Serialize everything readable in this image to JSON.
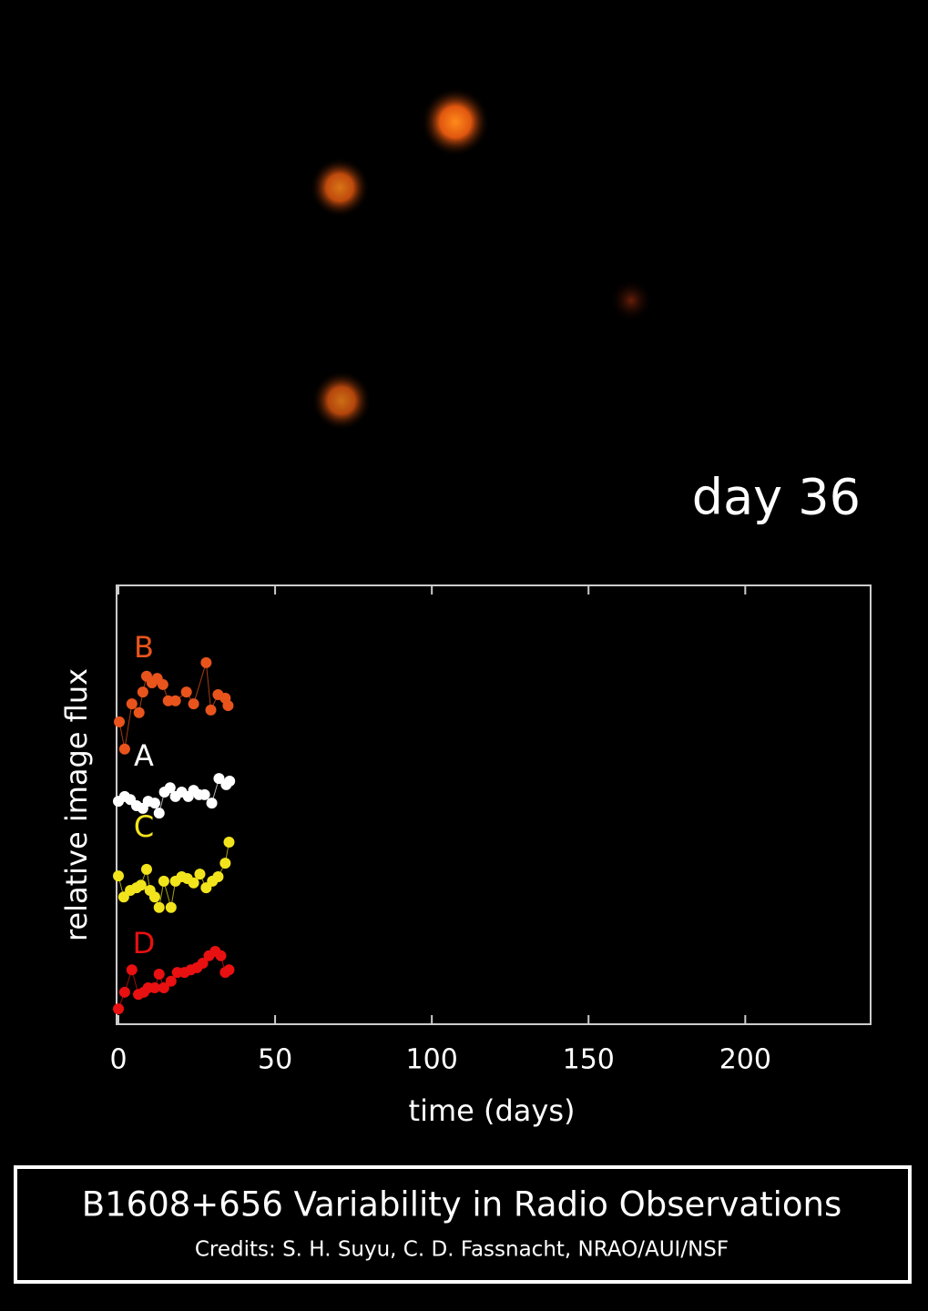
{
  "annotation": "day 36",
  "chart_data": {
    "type": "scatter-line",
    "xlabel": "time (days)",
    "ylabel": "relative image flux",
    "xlim": [
      0,
      240
    ],
    "ylim": [
      0,
      100
    ],
    "xticks": [
      0,
      50,
      100,
      150,
      200
    ],
    "series": [
      {
        "name": "B",
        "color": "#e8541c",
        "x": [
          0.3,
          2,
          4.3,
          6.6,
          7.8,
          9,
          10.7,
          12.4,
          14.2,
          15.9,
          18.2,
          21.7,
          24,
          28,
          29.5,
          31.8,
          34.1,
          35
        ],
        "values": [
          68.9,
          62.7,
          73.0,
          71.0,
          75.7,
          79.3,
          77.8,
          78.8,
          77.4,
          73.7,
          73.7,
          75.7,
          73.0,
          82.4,
          71.6,
          75.1,
          74.3,
          72.6
        ]
      },
      {
        "name": "A",
        "color": "#ffffff",
        "x": [
          0,
          2,
          3.8,
          5.8,
          7.8,
          9.5,
          11.6,
          13,
          14.7,
          16.5,
          18.2,
          20.2,
          22.3,
          24,
          25.7,
          27.5,
          29.8,
          32.1,
          34.4,
          35.5
        ],
        "values": [
          50.8,
          51.9,
          51.2,
          49.8,
          49.2,
          50.8,
          50.4,
          48.1,
          52.9,
          53.9,
          51.9,
          52.9,
          51.9,
          53.3,
          52.3,
          52.3,
          50.4,
          56.0,
          54.6,
          55.4
        ]
      },
      {
        "name": "C",
        "color": "#f2e41c",
        "x": [
          0,
          1.7,
          3.8,
          5.8,
          7.2,
          9,
          10.1,
          11.6,
          13,
          14.5,
          16.8,
          18.2,
          20.2,
          22,
          24,
          26,
          28,
          30,
          31.8,
          34.1,
          35.3
        ],
        "values": [
          33.8,
          29.0,
          30.5,
          31.1,
          31.7,
          35.3,
          30.5,
          29.0,
          26.6,
          32.6,
          26.6,
          32.6,
          33.6,
          33.2,
          32.2,
          34.2,
          31.1,
          32.6,
          33.6,
          36.7,
          41.5
        ]
      },
      {
        "name": "D",
        "color": "#e81010",
        "x": [
          0,
          2,
          4.3,
          6.4,
          8.1,
          9.5,
          11.6,
          13,
          14.5,
          16.8,
          18.8,
          21.1,
          23.1,
          25.1,
          26.9,
          28.9,
          30.9,
          32.7,
          34.1,
          35.3
        ],
        "values": [
          3.5,
          7.3,
          12.4,
          6.8,
          7.3,
          8.3,
          8.3,
          11.4,
          8.3,
          9.8,
          11.8,
          11.8,
          12.4,
          12.9,
          13.9,
          15.6,
          16.6,
          15.6,
          11.8,
          12.4
        ]
      }
    ]
  },
  "caption": {
    "title": "B1608+656 Variability in Radio Observations",
    "credits": "Credits: S. H. Suyu, C. D. Fassnacht, NRAO/AUI/NSF"
  }
}
